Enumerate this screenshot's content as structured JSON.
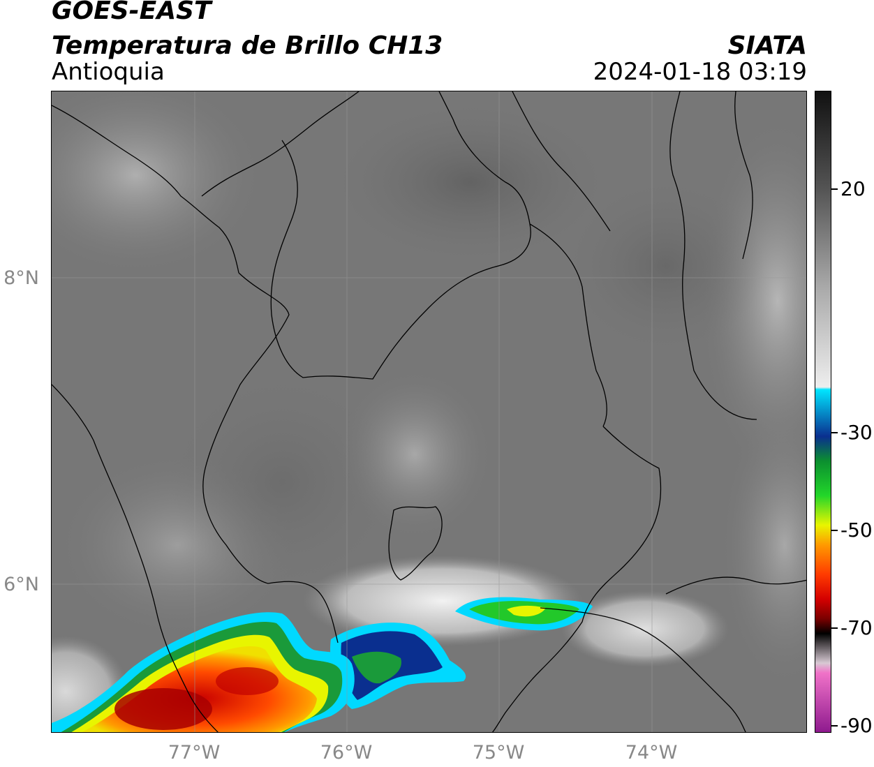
{
  "header": {
    "satellite": "GOES-EAST",
    "product": "Temperatura de Brillo CH13",
    "brand": "SIATA",
    "region": "Antioquia",
    "timestamp": "2024-01-18 03:19"
  },
  "map": {
    "latitude_labels": [
      "8°N",
      "6°N"
    ],
    "longitude_labels": [
      "77°W",
      "76°W",
      "75°W",
      "74°W"
    ],
    "gridlines": true,
    "cold_cloud_regions": [
      "southwest convective complex",
      "central-south band",
      "east-southeast cell"
    ]
  },
  "colorbar": {
    "unit_hint": "brightness temperature",
    "tick_labels": [
      "20",
      "-30",
      "-50",
      "-70",
      "-90"
    ],
    "range": [
      -90,
      40
    ],
    "stops": [
      {
        "value": 40,
        "color": "#111111"
      },
      {
        "value": 20,
        "color": "#555555"
      },
      {
        "value": 0,
        "color": "#aaaaaa"
      },
      {
        "value": -20,
        "color": "#eeeeee"
      },
      {
        "value": -20.5,
        "color": "#00e5ff"
      },
      {
        "value": -30,
        "color": "#0a2f8f"
      },
      {
        "value": -35,
        "color": "#0b8f2f"
      },
      {
        "value": -42,
        "color": "#22d62a"
      },
      {
        "value": -48,
        "color": "#e8f500"
      },
      {
        "value": -52,
        "color": "#ff9a00"
      },
      {
        "value": -58,
        "color": "#ff3b00"
      },
      {
        "value": -63,
        "color": "#d40000"
      },
      {
        "value": -67,
        "color": "#7a0000"
      },
      {
        "value": -70,
        "color": "#000000"
      },
      {
        "value": -76,
        "color": "#d7c9d3"
      },
      {
        "value": -78,
        "color": "#f072c8"
      },
      {
        "value": -90,
        "color": "#8e1a8e"
      }
    ]
  }
}
